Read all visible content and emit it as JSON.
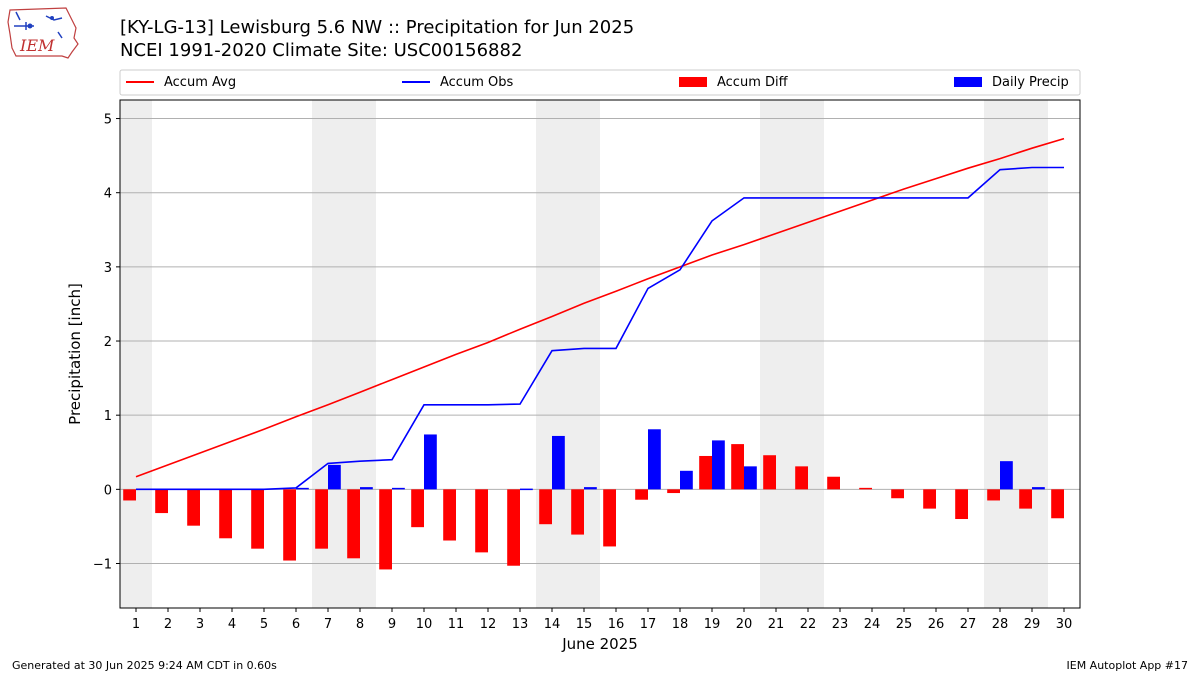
{
  "header": {
    "title_line1": "[KY-LG-13] Lewisburg 5.6 NW :: Precipitation for Jun 2025",
    "title_line2": "NCEI 1991-2020 Climate Site: USC00156882",
    "logo_text": "IEM"
  },
  "footer": {
    "generated": "Generated at 30 Jun 2025 9:24 AM CDT in 0.60s",
    "app": "IEM Autoplot App #17"
  },
  "chart_data": {
    "type": "bar",
    "xlabel": "June 2025",
    "ylabel": "Precipitation [inch]",
    "xlim": [
      0.5,
      30.5
    ],
    "ylim": [
      -1.6,
      5.25
    ],
    "yticks": [
      -1,
      0,
      1,
      2,
      3,
      4,
      5
    ],
    "ytick_labels": [
      "−1",
      "0",
      "1",
      "2",
      "3",
      "4",
      "5"
    ],
    "grid": "horizontal",
    "legend_placement": "top, above plot",
    "categories": [
      1,
      2,
      3,
      4,
      5,
      6,
      7,
      8,
      9,
      10,
      11,
      12,
      13,
      14,
      15,
      16,
      17,
      18,
      19,
      20,
      21,
      22,
      23,
      24,
      25,
      26,
      27,
      28,
      29,
      30
    ],
    "weekend_shading": [
      [
        0.5,
        1.5
      ],
      [
        6.5,
        8.5
      ],
      [
        13.5,
        15.5
      ],
      [
        20.5,
        22.5
      ],
      [
        27.5,
        29.5
      ]
    ],
    "colors": {
      "accum_avg": "#ff0000",
      "accum_obs": "#0000ff",
      "accum_diff": "#ff0000",
      "daily_precip": "#0000ff",
      "shading": "#eeeeee",
      "grid": "#b0b0b0"
    },
    "series": [
      {
        "name": "Accum Avg",
        "kind": "line",
        "values": [
          0.17,
          0.33,
          0.49,
          0.65,
          0.81,
          0.98,
          1.14,
          1.31,
          1.48,
          1.65,
          1.82,
          1.98,
          2.16,
          2.33,
          2.51,
          2.67,
          2.84,
          3.0,
          3.16,
          3.3,
          3.45,
          3.6,
          3.75,
          3.9,
          4.05,
          4.19,
          4.33,
          4.46,
          4.6,
          4.73
        ]
      },
      {
        "name": "Accum Obs",
        "kind": "line",
        "values": [
          0.0,
          0.0,
          0.0,
          0.0,
          0.0,
          0.02,
          0.35,
          0.38,
          0.4,
          1.14,
          1.14,
          1.14,
          1.15,
          1.87,
          1.9,
          1.9,
          2.71,
          2.96,
          3.62,
          3.93,
          3.93,
          3.93,
          3.93,
          3.93,
          3.93,
          3.93,
          3.93,
          4.31,
          4.34,
          4.34
        ]
      },
      {
        "name": "Accum Diff",
        "kind": "bar",
        "values": [
          -0.15,
          -0.32,
          -0.49,
          -0.66,
          -0.8,
          -0.96,
          -0.8,
          -0.93,
          -1.08,
          -0.51,
          -0.69,
          -0.85,
          -1.03,
          -0.47,
          -0.61,
          -0.77,
          -0.14,
          -0.05,
          0.45,
          0.61,
          0.46,
          0.31,
          0.17,
          0.02,
          -0.12,
          -0.26,
          -0.4,
          -0.15,
          -0.26,
          -0.39
        ]
      },
      {
        "name": "Daily Precip",
        "kind": "bar",
        "values": [
          0,
          0,
          0,
          0,
          0,
          0.02,
          0.33,
          0.03,
          0.02,
          0.74,
          0,
          0,
          0.01,
          0.72,
          0.03,
          0,
          0.81,
          0.25,
          0.66,
          0.31,
          0,
          0,
          0,
          0,
          0,
          0,
          0,
          0.38,
          0.03,
          0
        ]
      }
    ]
  }
}
